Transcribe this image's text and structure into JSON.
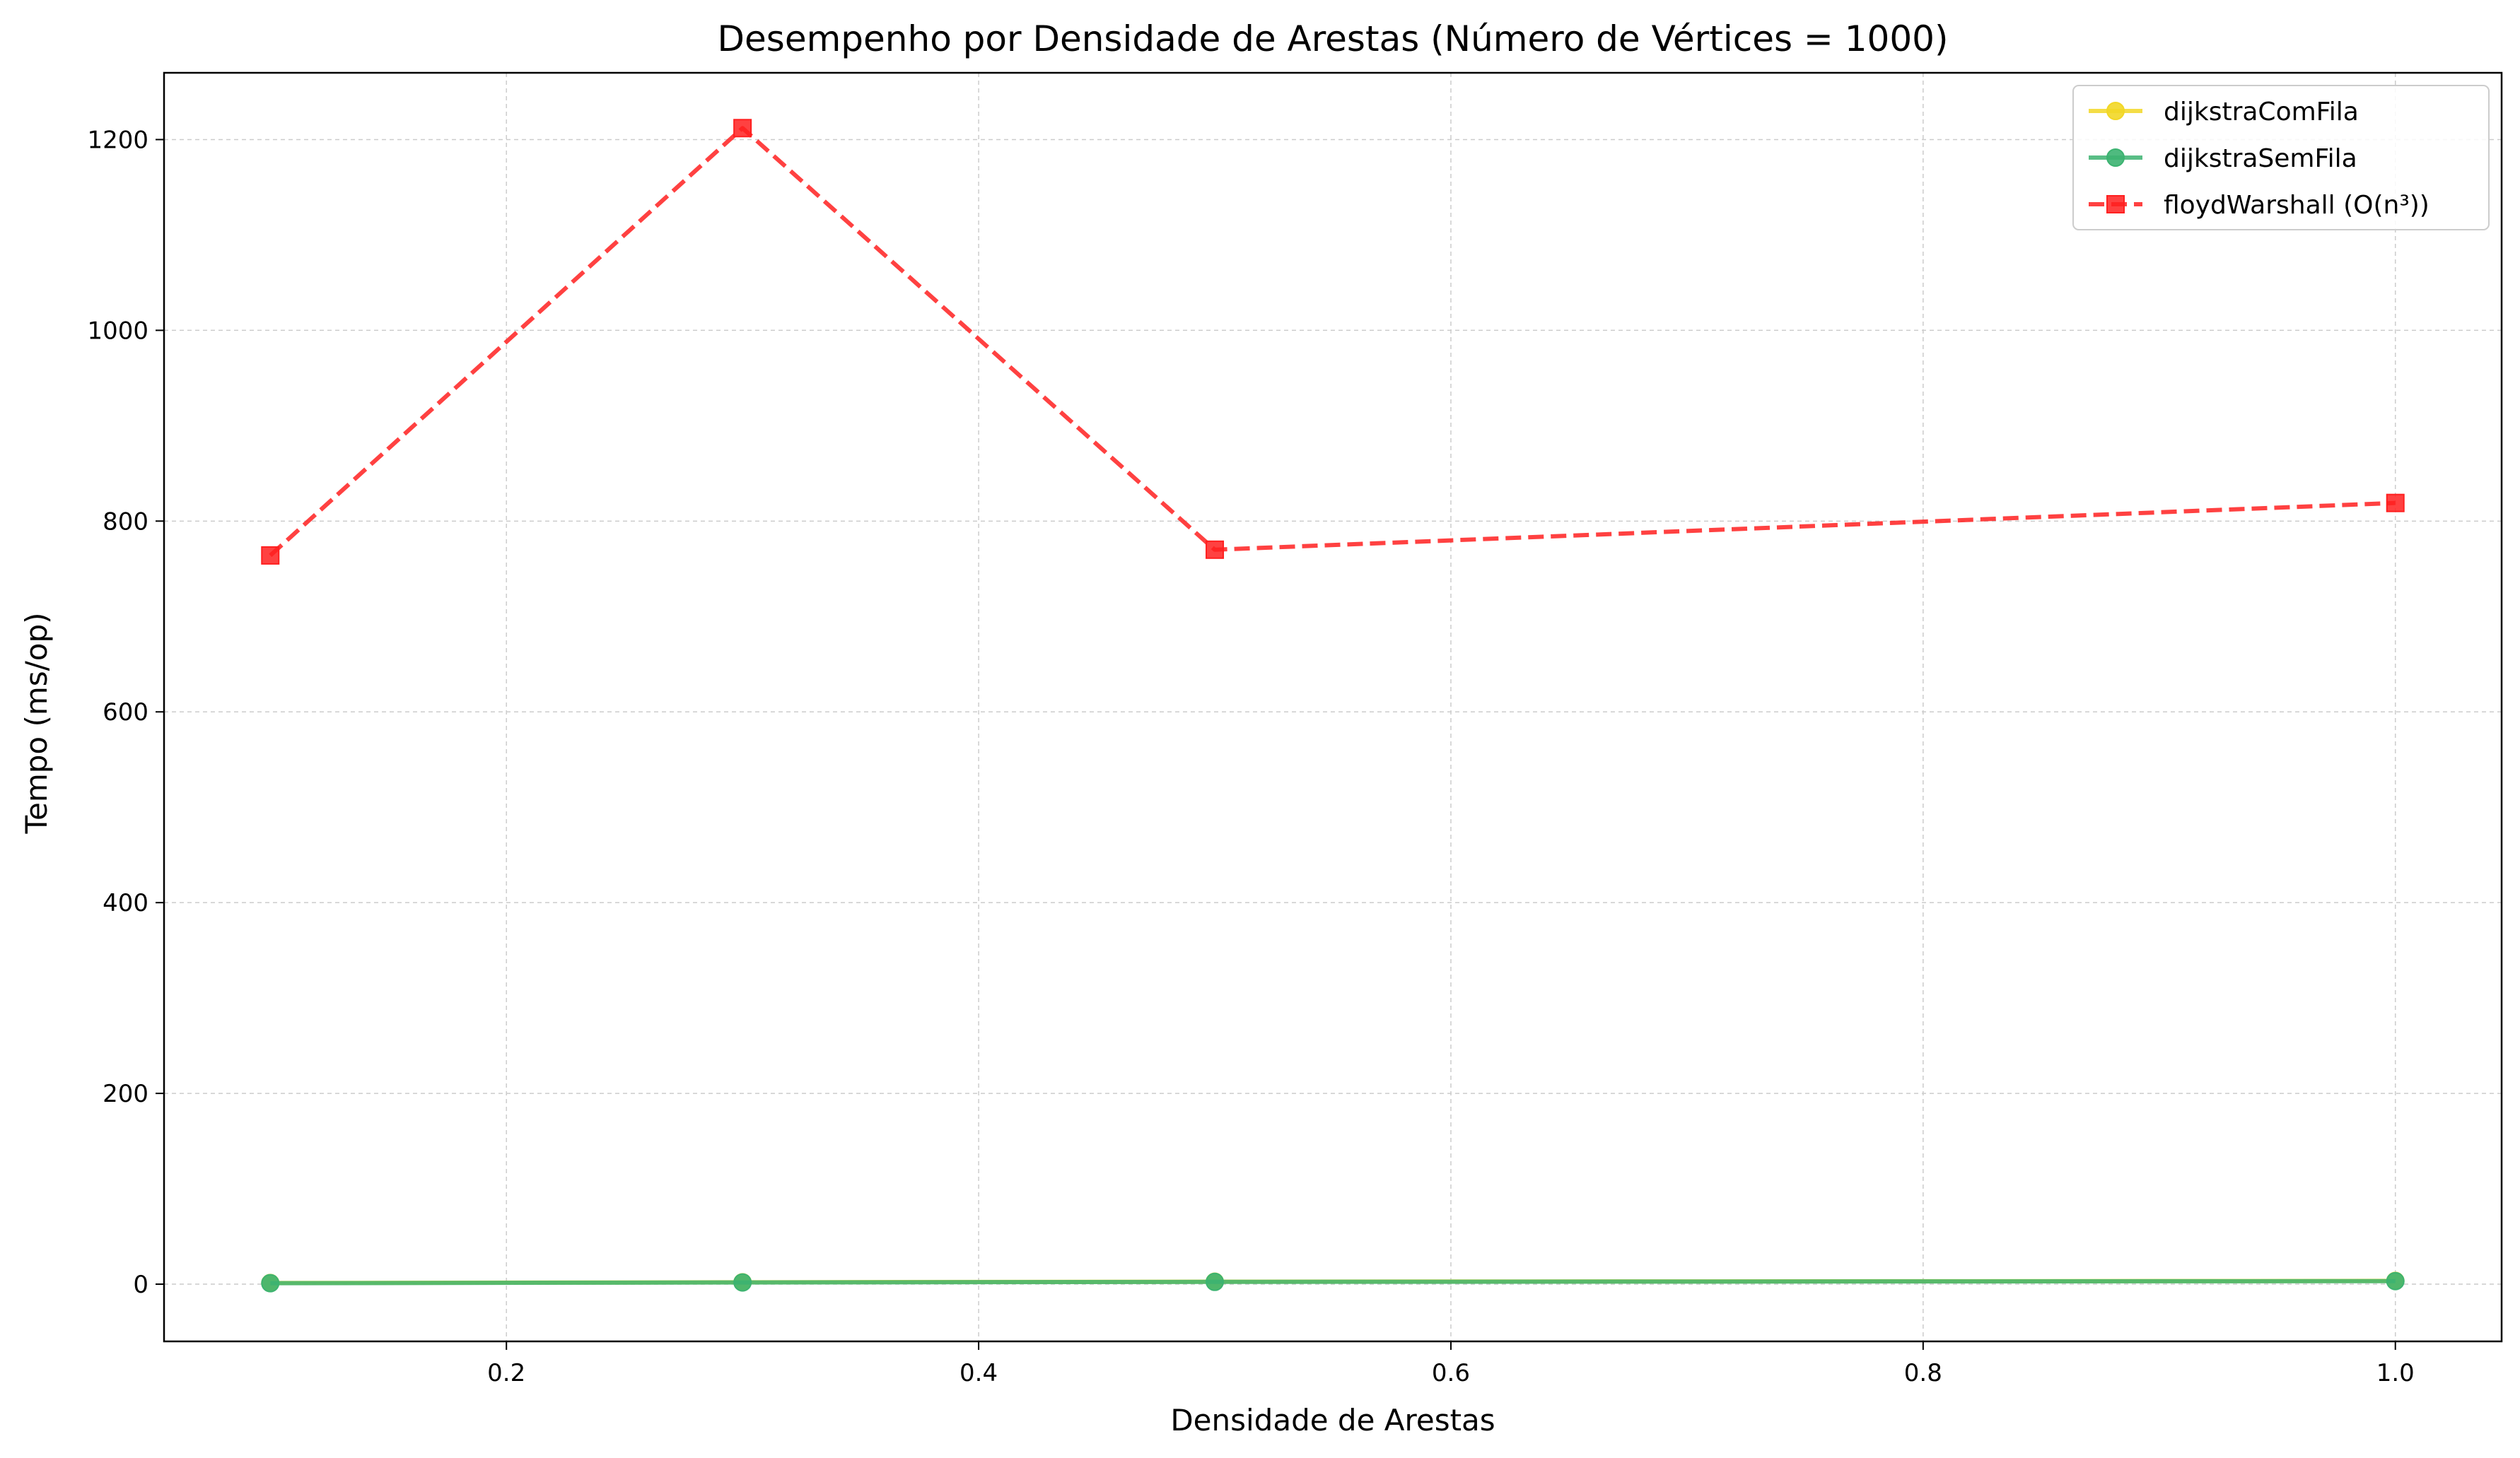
{
  "chart_data": {
    "type": "line",
    "title": "Desempenho por Densidade de Arestas (Número de Vértices = 1000)",
    "xlabel": "Densidade de Arestas",
    "ylabel": "Tempo (ms/op)",
    "xlim": [
      0.055,
      1.045
    ],
    "ylim": [
      -60,
      1270
    ],
    "xticks": [
      0.2,
      0.4,
      0.6,
      0.8,
      1.0
    ],
    "xtick_labels": [
      "0.2",
      "0.4",
      "0.6",
      "0.8",
      "1.0"
    ],
    "yticks": [
      0,
      200,
      400,
      600,
      800,
      1000,
      1200
    ],
    "ytick_labels": [
      "0",
      "200",
      "400",
      "600",
      "800",
      "1000",
      "1200"
    ],
    "grid": true,
    "legend_position": "top-right",
    "x": [
      0.1,
      0.3,
      0.5,
      1.0
    ],
    "series": [
      {
        "name": "dijkstraComFila",
        "values": [
          1.2,
          2.0,
          2.6,
          3.4
        ],
        "color": "#f2d726",
        "marker": "circle",
        "dash": "solid"
      },
      {
        "name": "dijkstraSemFila",
        "values": [
          1.0,
          1.8,
          2.4,
          3.2
        ],
        "color": "#3cb371",
        "marker": "circle",
        "dash": "solid"
      },
      {
        "name": "floydWarshall (O(n³))",
        "values": [
          764,
          1212,
          770,
          819
        ],
        "color": "#ff2020",
        "marker": "square",
        "dash": "dashed"
      }
    ]
  }
}
